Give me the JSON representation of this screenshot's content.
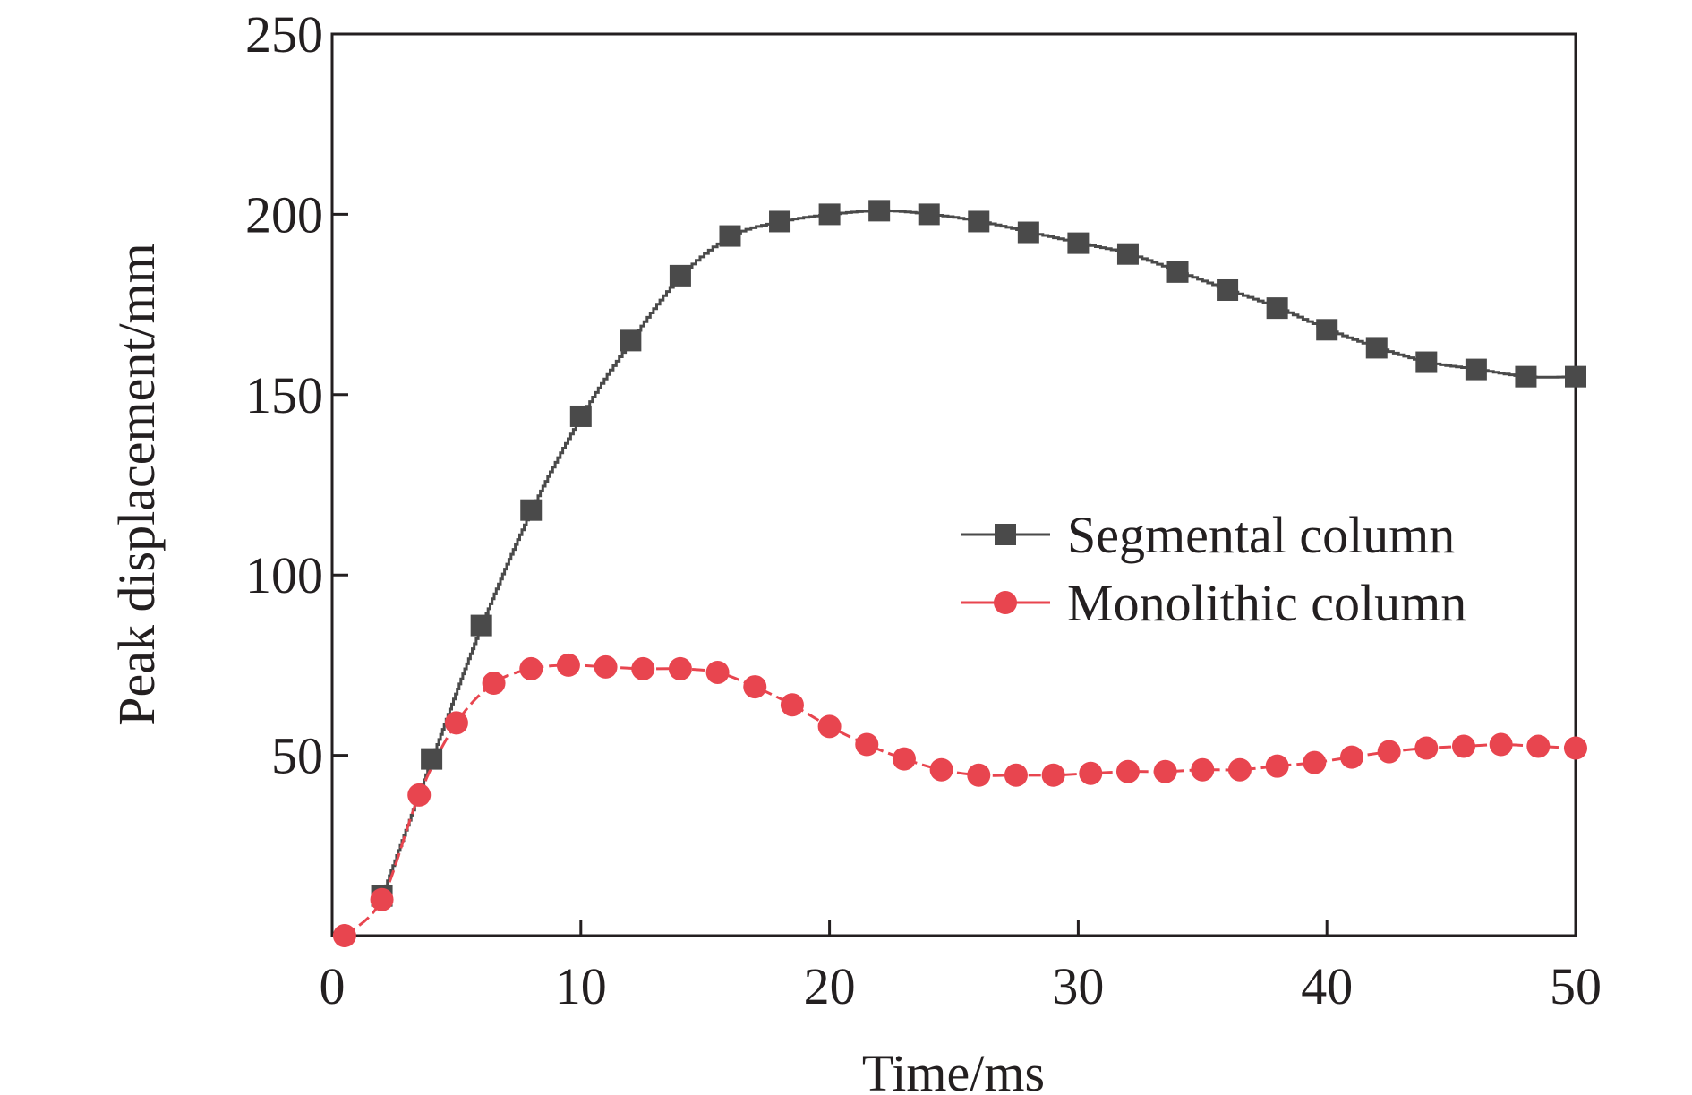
{
  "chart_data": {
    "type": "line",
    "xlabel": "Time/ms",
    "ylabel": "Peak displacement/mm",
    "xlim": [
      0,
      50
    ],
    "ylim": [
      0,
      250
    ],
    "x_ticks": [
      0,
      10,
      20,
      30,
      40,
      50
    ],
    "y_ticks": [
      50,
      100,
      150,
      200,
      250
    ],
    "grid": false,
    "legend_position": "right-middle",
    "series": [
      {
        "name": "Segmental column",
        "color": "#4a4a4a",
        "marker": "square",
        "line": "stepped-solid",
        "x": [
          2,
          4,
          6,
          8,
          10,
          12,
          14,
          16,
          18,
          20,
          22,
          24,
          26,
          28,
          30,
          32,
          34,
          36,
          38,
          40,
          42,
          44,
          46,
          48,
          50
        ],
        "y": [
          11,
          49,
          86,
          118,
          144,
          165,
          183,
          194,
          198,
          200,
          201,
          200,
          198,
          195,
          192,
          189,
          184,
          179,
          174,
          168,
          163,
          159,
          157,
          155,
          155
        ]
      },
      {
        "name": "Monolithic column",
        "color": "#e8454f",
        "marker": "circle",
        "line": "dashed",
        "x": [
          0.5,
          2,
          3.5,
          5,
          6.5,
          8,
          9.5,
          11,
          12.5,
          14,
          15.5,
          17,
          18.5,
          20,
          21.5,
          23,
          24.5,
          26,
          27.5,
          29,
          30.5,
          32,
          33.5,
          35,
          36.5,
          38,
          39.5,
          41,
          42.5,
          44,
          45.5,
          47,
          48.5,
          50
        ],
        "y": [
          0,
          10,
          39,
          59,
          70,
          74,
          75,
          74.5,
          74,
          74,
          73,
          69,
          64,
          58,
          53,
          49,
          46,
          44.5,
          44.5,
          44.5,
          45,
          45.5,
          45.5,
          46,
          46,
          47,
          48,
          49.5,
          51,
          52,
          52.5,
          53,
          52.5,
          52
        ]
      }
    ]
  }
}
